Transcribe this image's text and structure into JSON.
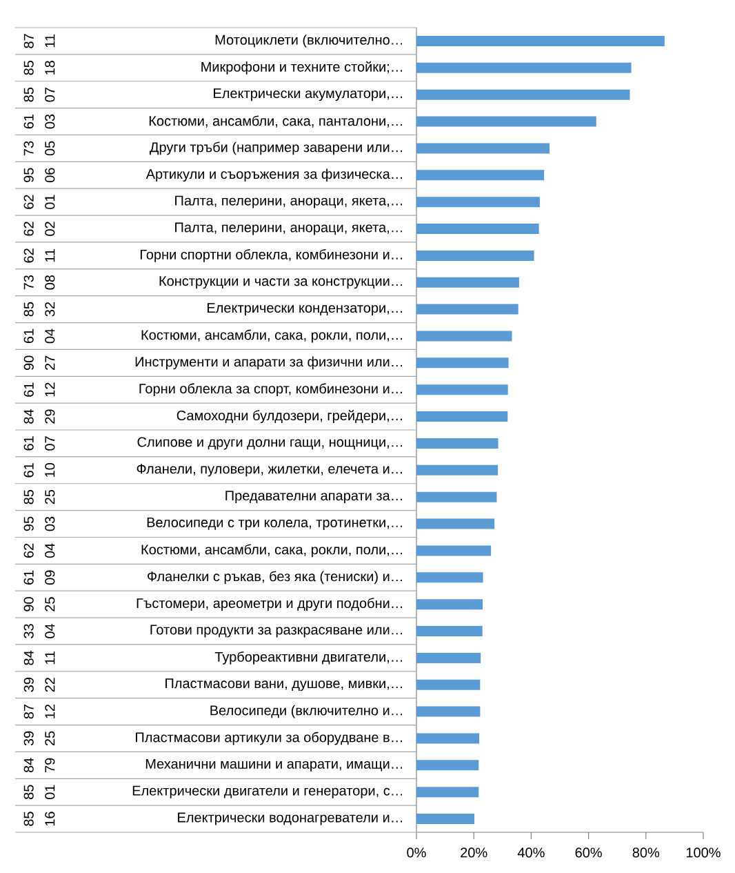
{
  "chart_data": {
    "type": "bar",
    "orientation": "horizontal",
    "categories": [
      "Мотоциклети (включително…",
      "Микрофони и техните стойки;…",
      "Електрически акумулатори,…",
      "Костюми, ансамбли, сака, панталони,…",
      "Други тръби (например заварени или…",
      "Артикули и съоръжения за физическа…",
      "Палта, пелерини, анораци, якета,…",
      "Палта, пелерини, анораци, якета,…",
      "Горни спортни облекла, комбинезони и…",
      "Конструкции и части за конструкции…",
      "Електрически кондензатори,…",
      "Костюми, ансамбли, сака, рокли, поли,…",
      "Инструменти и апарати за физични или…",
      "Горни облекла за спорт, комбинезони и…",
      "Самоходни булдозери, грейдери,…",
      "Слипове и други долни гащи, нощници,…",
      "Фланели, пуловери, жилетки, елечета и…",
      "Предавателни апарати за…",
      "Велосипеди с три колела, тротинетки,…",
      "Костюми, ансамбли, сака, рокли, поли,…",
      "Фланелки с ръкав, без яка (тениски) и…",
      "Гъстомери, ареометри и други подобни…",
      "Готови продукти за разкрасяване или…",
      "Турбореактивни двигатели,…",
      "Пластмасови вани, душове, мивки,…",
      "Велосипеди (включително и…",
      "Пластмасови артикули за оборудване в…",
      "Механични машини и апарати, имащи…",
      "Електрически двигатели и генератори, с…",
      "Електрически водонагреватели и…"
    ],
    "values": [
      86.5,
      74.9,
      74.4,
      62.7,
      46.4,
      44.5,
      43.0,
      42.7,
      41.0,
      35.8,
      35.5,
      33.3,
      32.1,
      31.9,
      31.8,
      28.5,
      28.4,
      28.0,
      27.2,
      26.0,
      23.2,
      23.1,
      23.0,
      22.4,
      22.2,
      22.2,
      21.9,
      21.7,
      21.7,
      20.2
    ],
    "color": "#5b9bd5",
    "xlim": [
      0,
      100
    ],
    "xticks": [
      {
        "value": 0,
        "label": "0%"
      },
      {
        "value": 20,
        "label": "20%"
      },
      {
        "value": 40,
        "label": "40%"
      },
      {
        "value": 60,
        "label": "60%"
      },
      {
        "value": 80,
        "label": "80%"
      },
      {
        "value": 100,
        "label": "100%"
      }
    ],
    "annotations": [
      "87 11",
      "85 18",
      "85 07",
      "61 03",
      "73 05",
      "95 06",
      "62 01",
      "62 02",
      "62 11",
      "73 08",
      "85 32",
      "61 04",
      "90 27",
      "61 12",
      "84 29",
      "61 07",
      "61 10",
      "85 25",
      "95 03",
      "62 04",
      "61 09",
      "90 25",
      "33 04",
      "84 11",
      "39 22",
      "87 12",
      "39 25",
      "84 79",
      "85 01",
      "85 16"
    ]
  }
}
